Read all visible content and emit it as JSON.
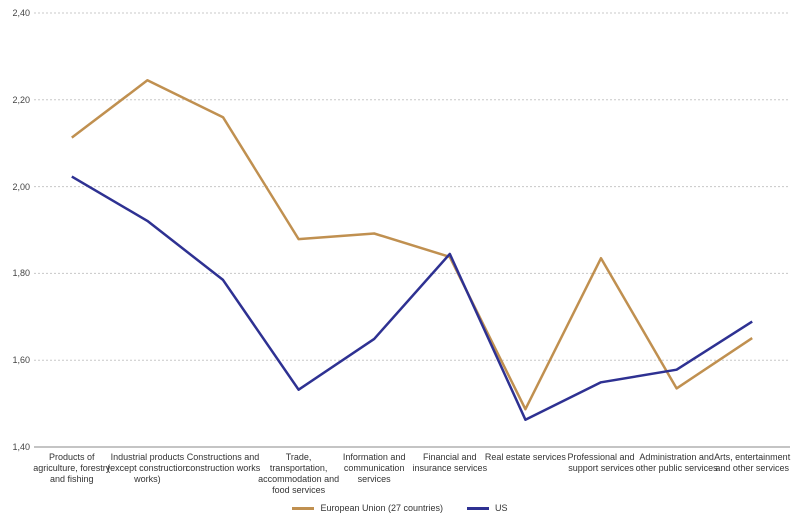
{
  "chart_data": {
    "type": "line",
    "categories": [
      "Products of agriculture, forestry and fishing",
      "Industrial products (except construction works)",
      "Constructions and construction works",
      "Trade, transportation, accommodation and food services",
      "Information and communication services",
      "Financial and insurance services",
      "Real estate services",
      "Professional and support services",
      "Administration and other public services",
      "Arts, entertainment and other services"
    ],
    "series": [
      {
        "name": "European Union (27 countries)",
        "color": "#c09050",
        "values": [
          2.113,
          2.245,
          2.16,
          1.879,
          1.892,
          1.838,
          1.487,
          1.835,
          1.535,
          1.651
        ]
      },
      {
        "name": "US",
        "color": "#2e3192",
        "values": [
          2.023,
          1.921,
          1.785,
          1.532,
          1.649,
          1.845,
          1.463,
          1.549,
          1.578,
          1.689
        ]
      }
    ],
    "yticks": [
      "1,40",
      "1,60",
      "1,80",
      "2,00",
      "2,20",
      "2,40"
    ],
    "ylim": [
      1.4,
      2.4
    ],
    "grid": true,
    "legend_position": "bottom-center",
    "title": "",
    "xlabel": "",
    "ylabel": ""
  }
}
